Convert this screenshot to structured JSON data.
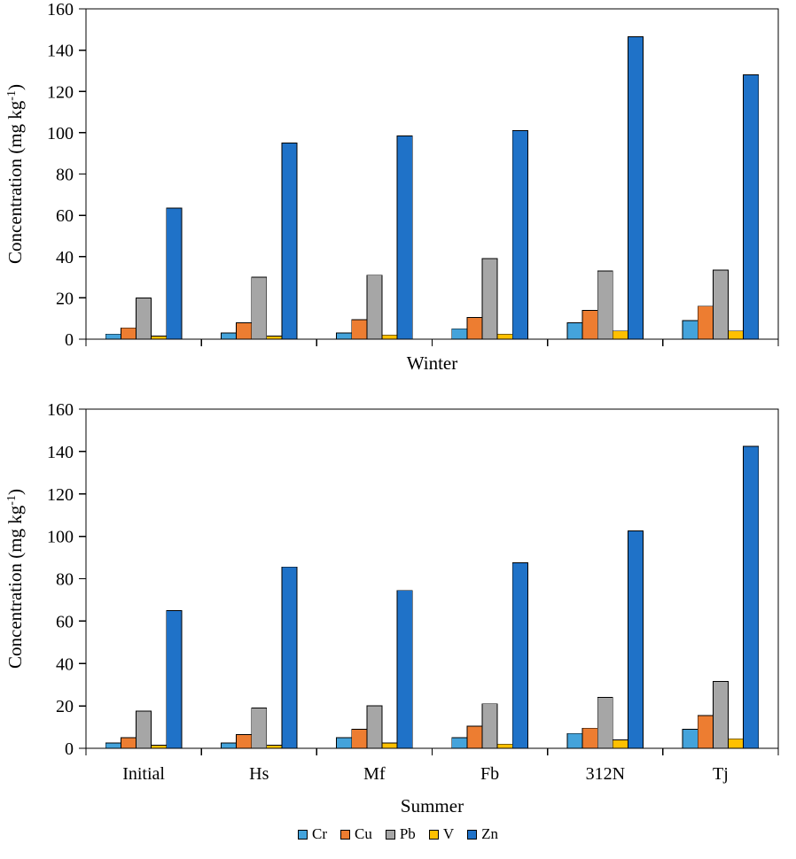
{
  "figure": {
    "background": "#ffffff",
    "axis_color": "#000000",
    "bar_border_color": "#000000"
  },
  "chart_data": [
    {
      "type": "bar",
      "name": "winter",
      "title": "",
      "xlabel": "Winter",
      "ylabel": "Concentration (mg kg⁻¹)",
      "ylabel_pre": "Concentration (mg kg",
      "ylabel_sup": "-1",
      "ylabel_post": ")",
      "ylim": [
        0,
        160
      ],
      "ytick_step": 20,
      "yticks": [
        0,
        20,
        40,
        60,
        80,
        100,
        120,
        140,
        160
      ],
      "grid": false,
      "legend_position": "shared-bottom",
      "categories": [
        "Initial",
        "Hs",
        "Mf",
        "Fb",
        "312N",
        "Tj"
      ],
      "show_category_labels": false,
      "series": [
        {
          "name": "Cr",
          "color": "#44A3DB",
          "values": [
            2.5,
            3,
            3,
            5,
            8,
            9
          ]
        },
        {
          "name": "Cu",
          "color": "#ED7D31",
          "values": [
            5.5,
            8,
            9.5,
            10.5,
            14,
            16
          ]
        },
        {
          "name": "Pb",
          "color": "#A6A6A6",
          "values": [
            20,
            30,
            31,
            39,
            33,
            33.5
          ]
        },
        {
          "name": "V",
          "color": "#FFC000",
          "values": [
            1.5,
            1.5,
            2,
            2.5,
            4,
            4
          ]
        },
        {
          "name": "Zn",
          "color": "#1F72C8",
          "values": [
            63.5,
            95,
            98.5,
            101,
            146.5,
            128
          ]
        }
      ]
    },
    {
      "type": "bar",
      "name": "summer",
      "title": "",
      "xlabel": "Summer",
      "ylabel": "Concentration (mg kg⁻¹)",
      "ylabel_pre": "Concentration (mg kg",
      "ylabel_sup": "-1",
      "ylabel_post": ")",
      "ylim": [
        0,
        160
      ],
      "ytick_step": 20,
      "yticks": [
        0,
        20,
        40,
        60,
        80,
        100,
        120,
        140,
        160
      ],
      "grid": false,
      "legend_position": "shared-bottom",
      "categories": [
        "Initial",
        "Hs",
        "Mf",
        "Fb",
        "312N",
        "Tj"
      ],
      "show_category_labels": true,
      "series": [
        {
          "name": "Cr",
          "color": "#44A3DB",
          "values": [
            2.5,
            2.5,
            5,
            5,
            7,
            9
          ]
        },
        {
          "name": "Cu",
          "color": "#ED7D31",
          "values": [
            5,
            6.5,
            9,
            10.5,
            9.5,
            15.5
          ]
        },
        {
          "name": "Pb",
          "color": "#A6A6A6",
          "values": [
            17.5,
            19,
            20,
            21,
            24,
            31.5
          ]
        },
        {
          "name": "V",
          "color": "#FFC000",
          "values": [
            1.5,
            1.5,
            2.5,
            2,
            4,
            4.5
          ]
        },
        {
          "name": "Zn",
          "color": "#1F72C8",
          "values": [
            65,
            85.5,
            74.5,
            87.5,
            102.5,
            142.5
          ]
        }
      ]
    }
  ],
  "legend": {
    "items": [
      {
        "label": "Cr",
        "color": "#44A3DB"
      },
      {
        "label": "Cu",
        "color": "#ED7D31"
      },
      {
        "label": "Pb",
        "color": "#A6A6A6"
      },
      {
        "label": "V",
        "color": "#FFC000"
      },
      {
        "label": "Zn",
        "color": "#1F72C8"
      }
    ]
  }
}
